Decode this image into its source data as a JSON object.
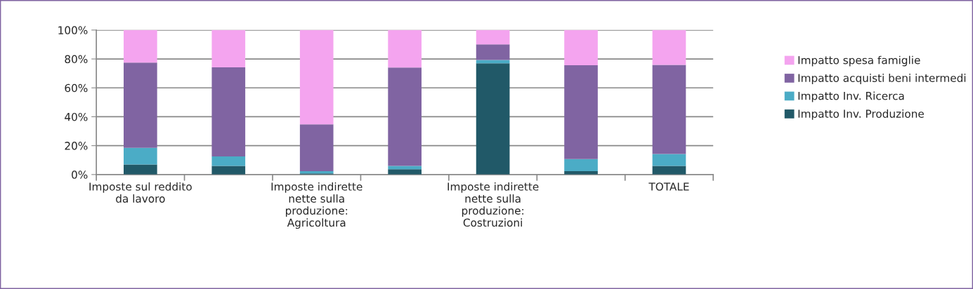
{
  "chart_data": {
    "type": "bar",
    "stacked": true,
    "categories": [
      "Imposte sul reddito da lavoro",
      null,
      "Imposte indirette nette sulla produzione: Agricoltura",
      null,
      "Imposte indirette nette sulla produzione: Costruzioni",
      null,
      "TOTALE"
    ],
    "series": [
      {
        "name": "Impatto Inv. Produzione",
        "color": "#215968",
        "values": [
          7,
          6,
          0.8,
          3.7,
          77,
          2.4,
          6
        ]
      },
      {
        "name": "Impatto Inv. Ricerca",
        "color": "#4bacc6",
        "values": [
          11.5,
          6.6,
          1.6,
          2.3,
          2.3,
          8.3,
          8.3
        ]
      },
      {
        "name": "Impatto acquisti beni intermedi",
        "color": "#8064a2",
        "values": [
          59,
          61.6,
          32.3,
          68.1,
          10.8,
          65,
          61.6
        ]
      },
      {
        "name": "Impatto spesa famiglie",
        "color": "#f4a4ef",
        "values": [
          22.5,
          25.8,
          65.3,
          25.9,
          9.9,
          24.3,
          24.1
        ]
      }
    ],
    "ylim": [
      0,
      100
    ],
    "yticks": [
      {
        "value": 0,
        "label": "0%"
      },
      {
        "value": 20,
        "label": "20%"
      },
      {
        "value": 40,
        "label": "40%"
      },
      {
        "value": 60,
        "label": "60%"
      },
      {
        "value": 80,
        "label": "80%"
      },
      {
        "value": 100,
        "label": "100%"
      }
    ],
    "grid": "y",
    "legend": "right"
  }
}
